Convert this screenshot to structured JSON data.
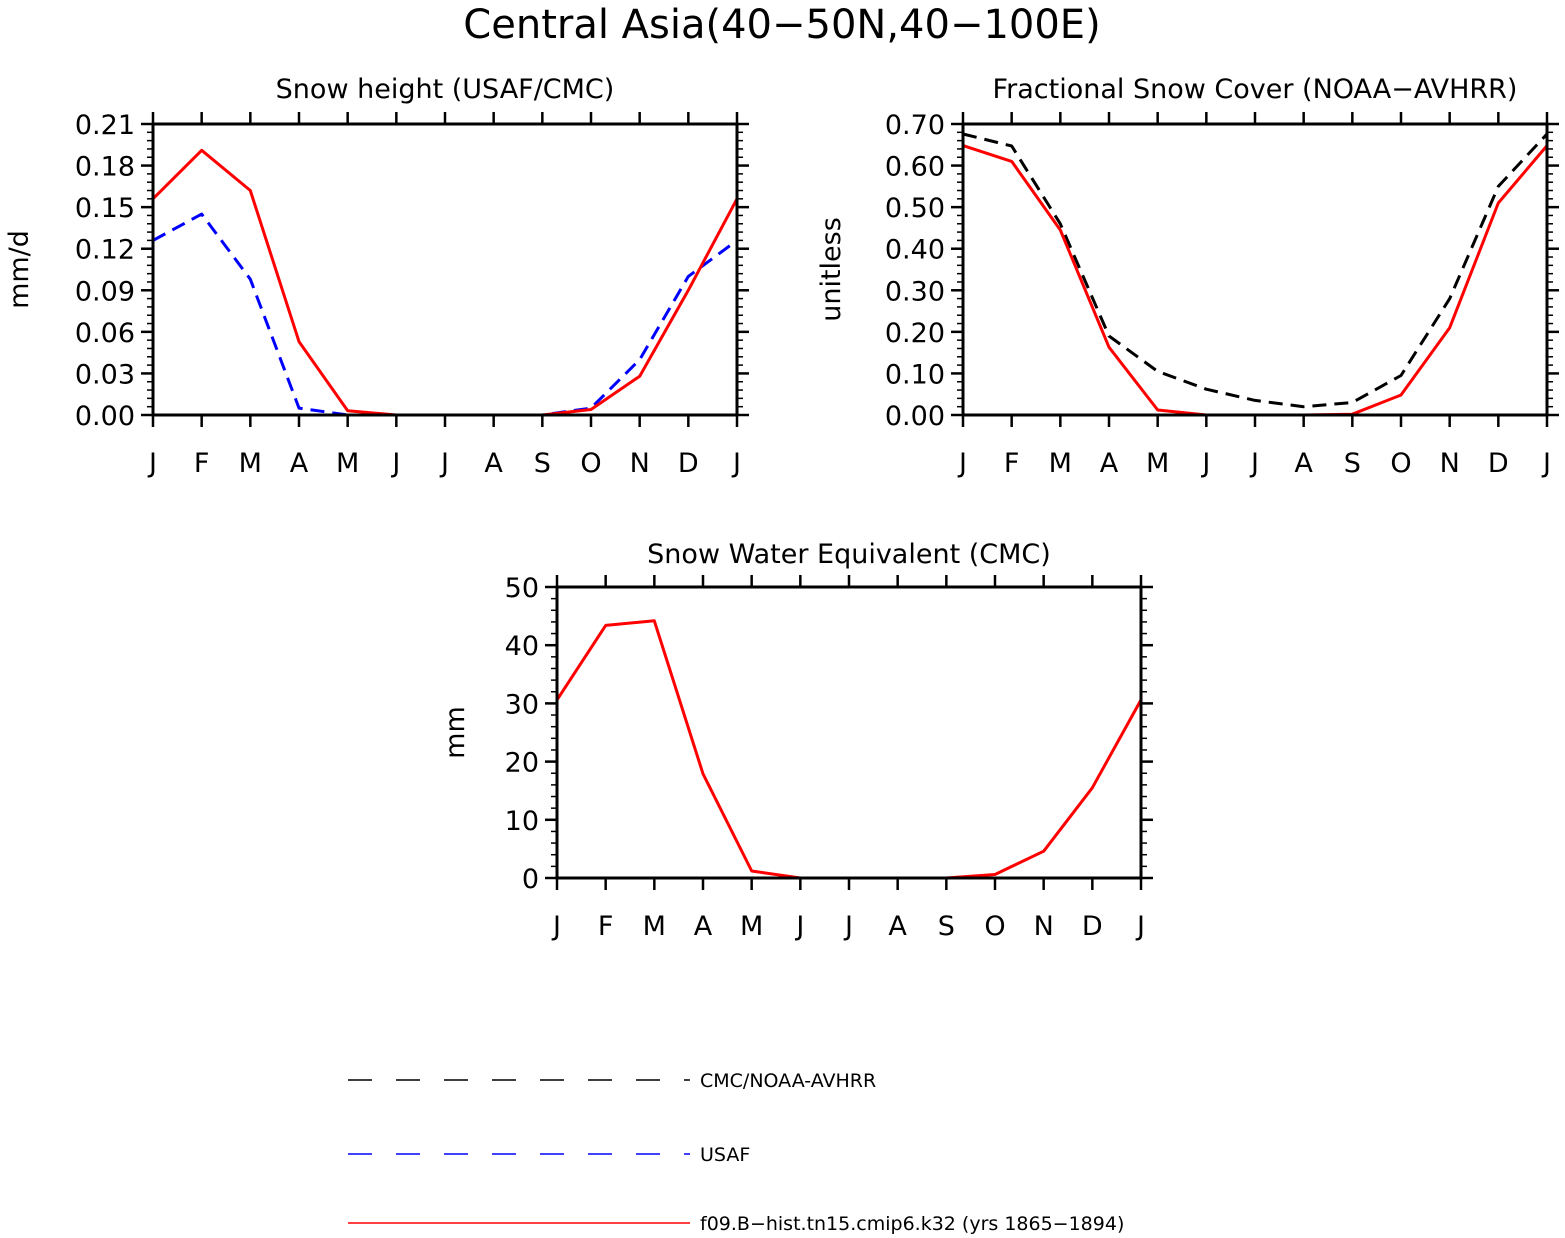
{
  "figure": {
    "title": "Central Asia(40−50N,40−100E)"
  },
  "chart_data": [
    {
      "id": "snow-height",
      "type": "line",
      "title": "Snow height (USAF/CMC)",
      "xlabel": "",
      "ylabel": "mm/d",
      "categories": [
        "J",
        "F",
        "M",
        "A",
        "M",
        "J",
        "J",
        "A",
        "S",
        "O",
        "N",
        "D",
        "J"
      ],
      "ylim": [
        0,
        0.21
      ],
      "yticks": [
        0,
        0.03,
        0.06,
        0.09,
        0.12,
        0.15,
        0.18,
        0.21
      ],
      "ytick_labels": [
        "0.00",
        "0.03",
        "0.06",
        "0.09",
        "0.12",
        "0.15",
        "0.18",
        "0.21"
      ],
      "series": [
        {
          "name": "CMC/NOAA-AVHRR",
          "color": "#000000",
          "dash": "dashed",
          "values": [
            0,
            0,
            0,
            0,
            0,
            0,
            0,
            0,
            0,
            0,
            0,
            0,
            0
          ]
        },
        {
          "name": "USAF",
          "color": "#0000ff",
          "dash": "dashed",
          "values": [
            0.126,
            0.145,
            0.098,
            0.005,
            0.0,
            0.0,
            0.0,
            0.0,
            0.0,
            0.005,
            0.04,
            0.1,
            0.126
          ]
        },
        {
          "name": "f09.B−hist.tn15.cmip6.k32 (yrs 1865−1894)",
          "color": "#ff0000",
          "dash": "solid",
          "values": [
            0.156,
            0.191,
            0.162,
            0.053,
            0.003,
            0.0,
            0.0,
            0.0,
            0.0,
            0.004,
            0.028,
            0.09,
            0.156
          ]
        }
      ]
    },
    {
      "id": "snow-cover",
      "type": "line",
      "title": "Fractional Snow Cover (NOAA−AVHRR)",
      "xlabel": "",
      "ylabel": "unitless",
      "categories": [
        "J",
        "F",
        "M",
        "A",
        "M",
        "J",
        "J",
        "A",
        "S",
        "O",
        "N",
        "D",
        "J"
      ],
      "ylim": [
        0,
        0.7
      ],
      "yticks": [
        0,
        0.1,
        0.2,
        0.3,
        0.4,
        0.5,
        0.6,
        0.7
      ],
      "ytick_labels": [
        "0.00",
        "0.10",
        "0.20",
        "0.30",
        "0.40",
        "0.50",
        "0.60",
        "0.70"
      ],
      "series": [
        {
          "name": "CMC/NOAA-AVHRR",
          "color": "#000000",
          "dash": "dashed",
          "values": [
            0.676,
            0.647,
            0.46,
            0.19,
            0.105,
            0.062,
            0.035,
            0.02,
            0.03,
            0.095,
            0.28,
            0.55,
            0.676
          ]
        },
        {
          "name": "f09.B−hist.tn15.cmip6.k32 (yrs 1865−1894)",
          "color": "#ff0000",
          "dash": "solid",
          "values": [
            0.648,
            0.61,
            0.445,
            0.163,
            0.012,
            0.0,
            0.0,
            0.0,
            0.002,
            0.048,
            0.21,
            0.51,
            0.648
          ]
        }
      ]
    },
    {
      "id": "swe",
      "type": "line",
      "title": "Snow Water Equivalent (CMC)",
      "xlabel": "",
      "ylabel": "mm",
      "categories": [
        "J",
        "F",
        "M",
        "A",
        "M",
        "J",
        "J",
        "A",
        "S",
        "O",
        "N",
        "D",
        "J"
      ],
      "ylim": [
        0,
        50
      ],
      "yticks": [
        0,
        10,
        20,
        30,
        40,
        50
      ],
      "ytick_labels": [
        "0",
        "10",
        "20",
        "30",
        "40",
        "50"
      ],
      "series": [
        {
          "name": "CMC/NOAA-AVHRR",
          "color": "#000000",
          "dash": "dashed",
          "values": [
            0,
            0,
            0,
            0,
            0,
            0,
            0,
            0,
            0,
            0,
            0,
            0,
            0
          ]
        },
        {
          "name": "f09.B−hist.tn15.cmip6.k32 (yrs 1865−1894)",
          "color": "#ff0000",
          "dash": "solid",
          "values": [
            30.6,
            43.4,
            44.2,
            17.9,
            1.2,
            0.0,
            0.0,
            0.0,
            0.0,
            0.6,
            4.6,
            15.5,
            30.6
          ]
        }
      ]
    }
  ],
  "legend": {
    "items": [
      {
        "label": "CMC/NOAA-AVHRR",
        "color": "#000000",
        "dash": "dashed"
      },
      {
        "label": "USAF",
        "color": "#0000ff",
        "dash": "dashed"
      },
      {
        "label": "f09.B−hist.tn15.cmip6.k32 (yrs 1865−1894)",
        "color": "#ff0000",
        "dash": "solid"
      }
    ]
  }
}
